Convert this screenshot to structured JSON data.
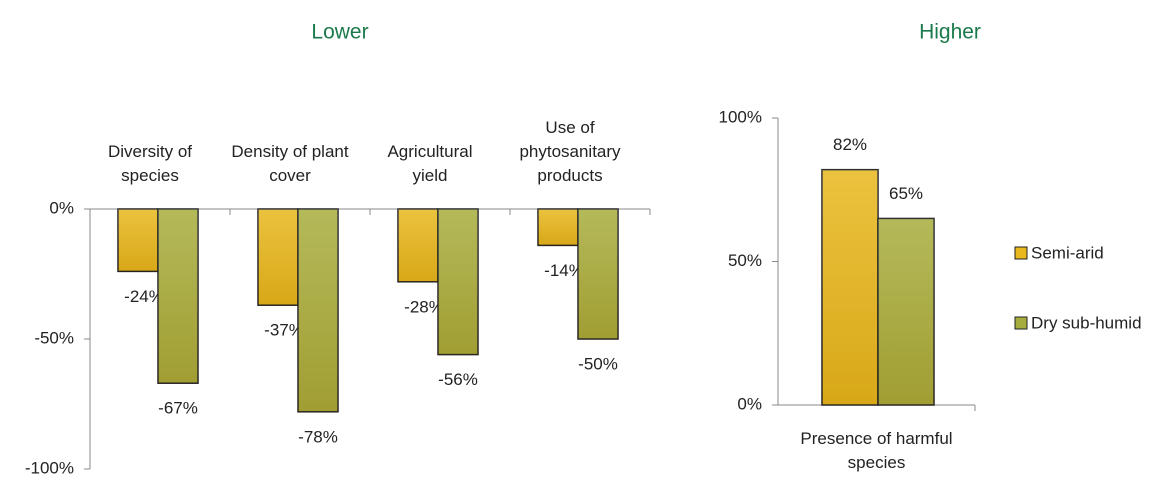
{
  "chart_data": [
    {
      "type": "bar",
      "title": "Lower",
      "categories": [
        "Diversity of species",
        "Density of plant cover",
        "Agricultural yield",
        "Use of phytosanitary products"
      ],
      "series": [
        {
          "color": "#e8b81c",
          "values": [
            -24,
            -37,
            -28,
            -14
          ],
          "value_labels": [
            "-24%",
            "-37%",
            "-28%",
            "-14%"
          ]
        },
        {
          "color": "#a7ad3c",
          "values": [
            -67,
            -78,
            -56,
            -50
          ],
          "value_labels": [
            "-67%",
            "-78%",
            "-56%",
            "-50%"
          ]
        }
      ],
      "ylim": [
        -100,
        0
      ],
      "yticks": [
        {
          "value": -100,
          "label": "-100%"
        },
        {
          "value": -50,
          "label": "-50%"
        },
        {
          "value": 0,
          "label": "0%"
        }
      ]
    },
    {
      "type": "bar",
      "title": "Higher",
      "categories": [
        "Presence of harmful species"
      ],
      "series": [
        {
          "name": "Semi-arid",
          "color": "#e8b81c",
          "values": [
            82
          ],
          "value_labels": [
            "82%"
          ]
        },
        {
          "name": "Dry sub-humid",
          "color": "#a7ad3c",
          "values": [
            65
          ],
          "value_labels": [
            "65%"
          ]
        }
      ],
      "ylim": [
        0,
        100
      ],
      "yticks": [
        {
          "value": 0,
          "label": "0%"
        },
        {
          "value": 50,
          "label": "50%"
        },
        {
          "value": 100,
          "label": "100%"
        }
      ],
      "legend": "right"
    }
  ]
}
